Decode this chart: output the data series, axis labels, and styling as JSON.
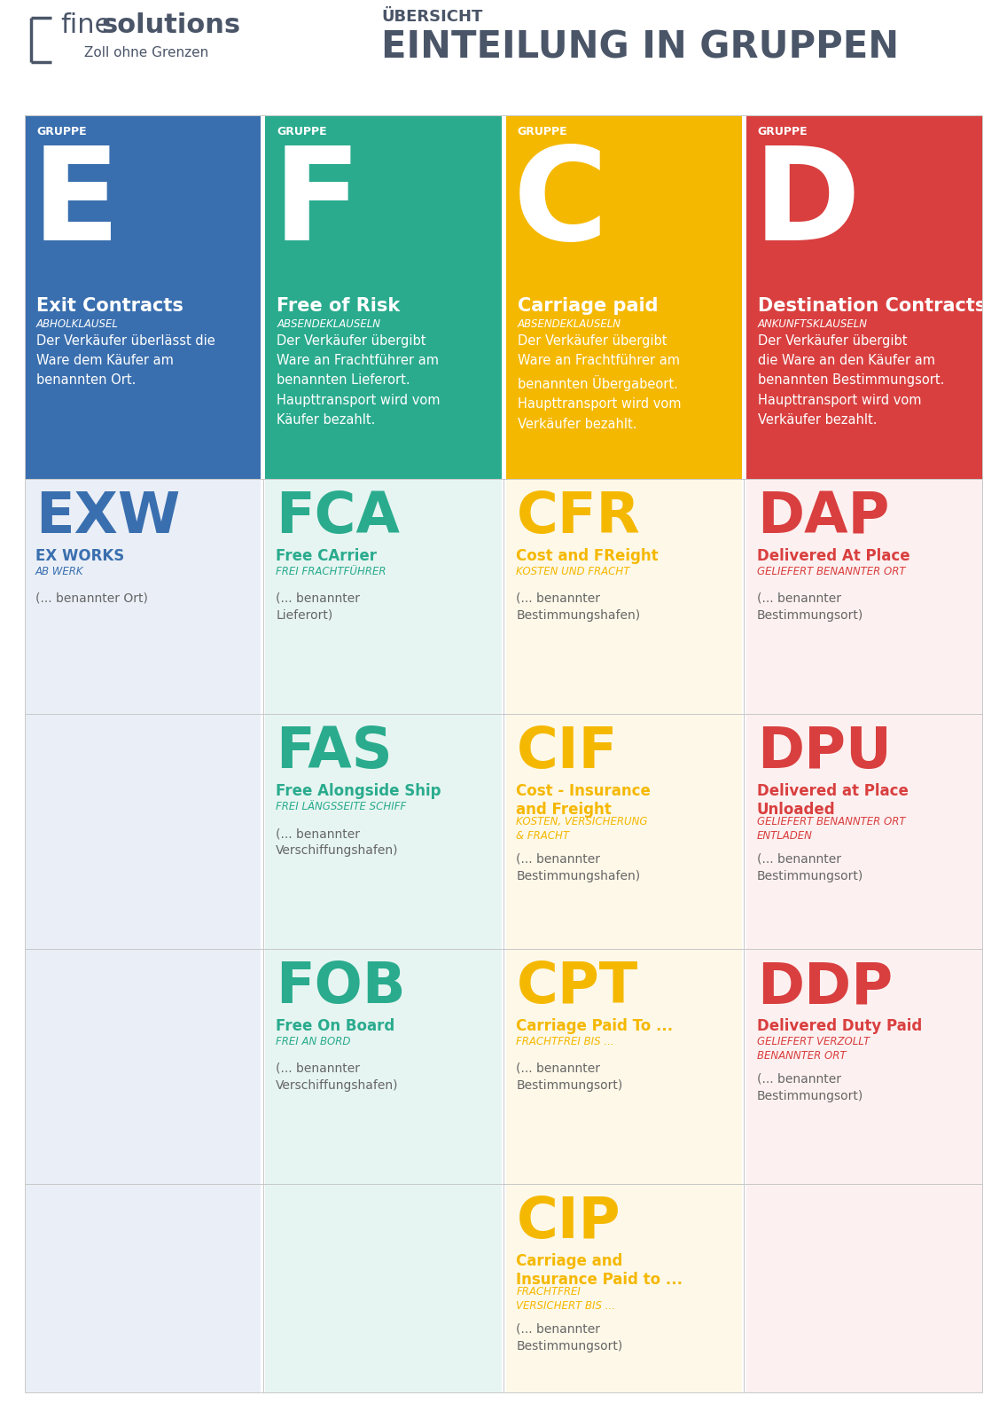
{
  "bg_color": "#ffffff",
  "logo_color": "#4a5568",
  "title_top": "ÜBERSICHT",
  "title_main": "EINTEILUNG IN GRUPPEN",
  "groups": [
    {
      "letter": "E",
      "bg_color": "#3a6faf",
      "subtitle": "Exit Contracts",
      "subtitle_italic": "ABHOLKLAUSEL",
      "desc": "Der Verkäufer überlässt die\nWare dem Käufer am\nbenannten Ort."
    },
    {
      "letter": "F",
      "bg_color": "#2aab8e",
      "subtitle": "Free of Risk",
      "subtitle_italic": "ABSENDEKLAUSELN",
      "desc": "Der Verkäufer übergibt\nWare an Frachtführer am\nbenannten Lieferort.\nHaupttransport wird vom\nKäufer bezahlt."
    },
    {
      "letter": "C",
      "bg_color": "#f5b800",
      "subtitle": "Carriage paid",
      "subtitle_italic": "ABSENDEKLAUSELN",
      "desc": "Der Verkäufer übergibt\nWare an Frachtführer am\nbenannten Übergabeort.\nHaupttransport wird vom\nVerkäufer bezahlt."
    },
    {
      "letter": "D",
      "bg_color": "#d93f3f",
      "subtitle": "Destination Contracts",
      "subtitle_italic": "ANKUNFTSKLAUSELN",
      "desc": "Der Verkäufer übergibt\ndie Ware an den Käufer am\nbenannten Bestimmungsort.\nHaupttransport wird vom\nVerkäufer bezahlt."
    }
  ],
  "col_bg": [
    "#eaeff7",
    "#e6f5f1",
    "#fdf8e8",
    "#fdf0f0"
  ],
  "col_accent": [
    "#3a6faf",
    "#2aab8e",
    "#f5b800",
    "#d93f3f"
  ],
  "terms": [
    [
      {
        "code": "EXW",
        "name": "EX WORKS",
        "sub": "AB WERK",
        "loc": "(... benannter Ort)",
        "col": 0
      },
      {
        "code": "FCA",
        "name": "Free CArrier",
        "sub": "FREI FRACHTFÜHRER",
        "loc": "(... benannter\nLieferort)",
        "col": 1
      },
      {
        "code": "CFR",
        "name": "Cost and FReight",
        "sub": "KOSTEN UND FRACHT",
        "loc": "(... benannter\nBestimmungshafen)",
        "col": 2
      },
      {
        "code": "DAP",
        "name": "Delivered At Place",
        "sub": "GELIEFERT BENANNTER ORT",
        "loc": "(... benannter\nBestimmungsort)",
        "col": 3
      }
    ],
    [
      null,
      {
        "code": "FAS",
        "name": "Free Alongside Ship",
        "sub": "FREI LÄNGSSEITE SCHIFF",
        "loc": "(... benannter\nVerschiffungshafen)",
        "col": 1
      },
      {
        "code": "CIF",
        "name": "Cost - Insurance\nand Freight",
        "sub": "KOSTEN, VERSICHERUNG\n& FRACHT",
        "loc": "(... benannter\nBestimmungshafen)",
        "col": 2
      },
      {
        "code": "DPU",
        "name": "Delivered at Place\nUnloaded",
        "sub": "GELIEFERT BENANNTER ORT\nENTLADEN",
        "loc": "(... benannter\nBestimmungsort)",
        "col": 3
      }
    ],
    [
      null,
      {
        "code": "FOB",
        "name": "Free On Board",
        "sub": "FREI AN BORD",
        "loc": "(... benannter\nVerschiffungshafen)",
        "col": 1
      },
      {
        "code": "CPT",
        "name": "Carriage Paid To ...",
        "sub": "FRACHTFREI BIS ...",
        "loc": "(... benannter\nBestimmungsort)",
        "col": 2
      },
      {
        "code": "DDP",
        "name": "Delivered Duty Paid",
        "sub": "GELIEFERT VERZOLLT\nBENANNTER ORT",
        "loc": "(... benannter\nBestimmungsort)",
        "col": 3
      }
    ],
    [
      null,
      null,
      {
        "code": "CIP",
        "name": "Carriage and\nInsurance Paid to ...",
        "sub": "FRACHTFREI\nVERSICHERT BIS ...",
        "loc": "(... benannter\nBestimmungsort)",
        "col": 2
      },
      null
    ]
  ]
}
